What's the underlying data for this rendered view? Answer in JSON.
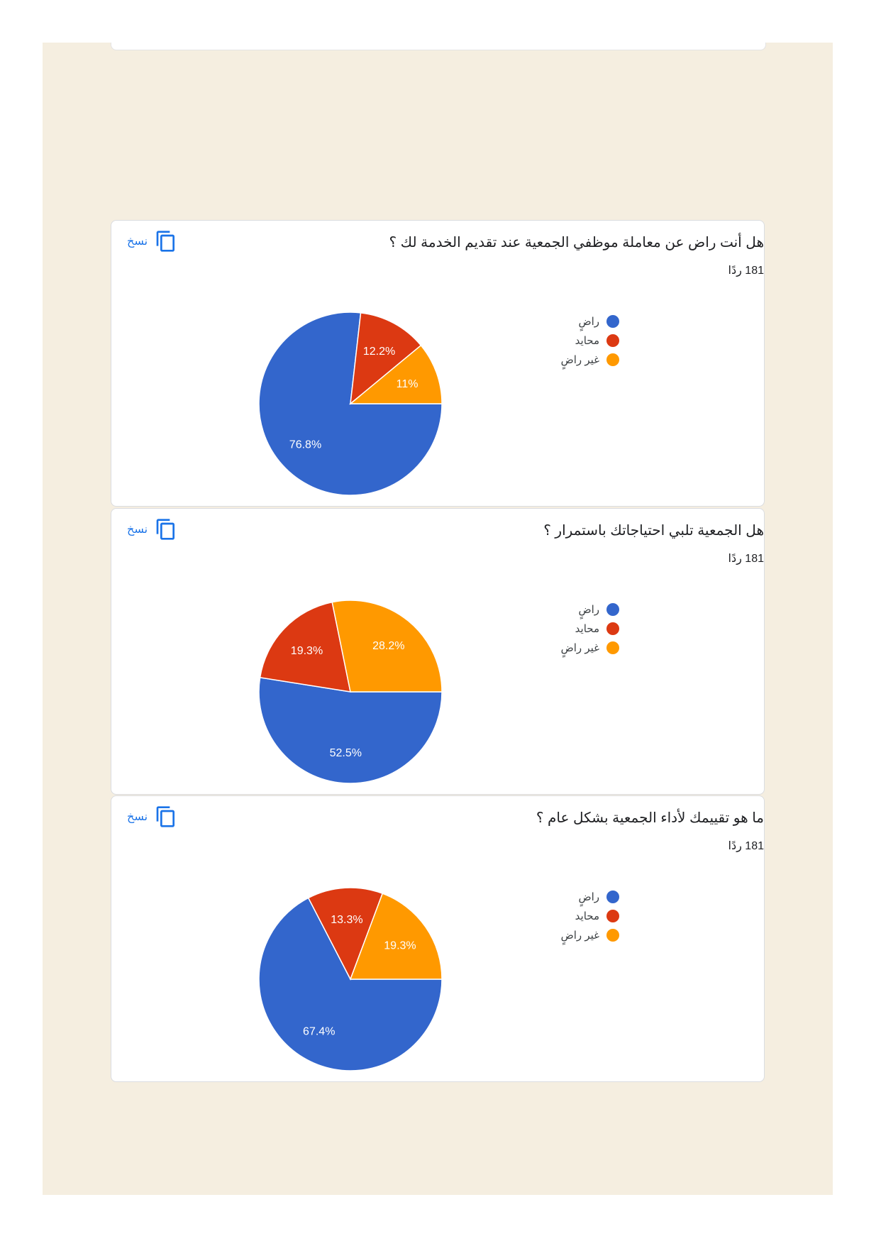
{
  "copy_label": "نسخ",
  "legend_labels": [
    "راضٍ",
    "محايد",
    "غير راضٍ"
  ],
  "colors": [
    "#3366cc",
    "#dc3912",
    "#ff9900"
  ],
  "charts": [
    {
      "question": "هل أنت راض عن معاملة موظفي الجمعية عند تقديم الخدمة لك ؟",
      "responses": "181 ردًا",
      "chart_data": {
        "type": "pie",
        "labels": [
          "راضٍ",
          "محايد",
          "غير راضٍ"
        ],
        "values": [
          76.8,
          12.2,
          11
        ],
        "value_labels": [
          "76.8%",
          "12.2%",
          "11%"
        ]
      }
    },
    {
      "question": "هل الجمعية تلبي احتياجاتك باستمرار ؟",
      "responses": "181 ردًا",
      "chart_data": {
        "type": "pie",
        "labels": [
          "راضٍ",
          "محايد",
          "غير راضٍ"
        ],
        "values": [
          52.5,
          19.3,
          28.2
        ],
        "value_labels": [
          "52.5%",
          "19.3%",
          "28.2%"
        ]
      }
    },
    {
      "question": "ما هو تقييمك لأداء الجمعية بشكل عام ؟",
      "responses": "181 ردًا",
      "chart_data": {
        "type": "pie",
        "labels": [
          "راضٍ",
          "محايد",
          "غير راضٍ"
        ],
        "values": [
          67.4,
          13.3,
          19.3
        ],
        "value_labels": [
          "67.4%",
          "13.3%",
          "19.3%"
        ]
      }
    }
  ]
}
